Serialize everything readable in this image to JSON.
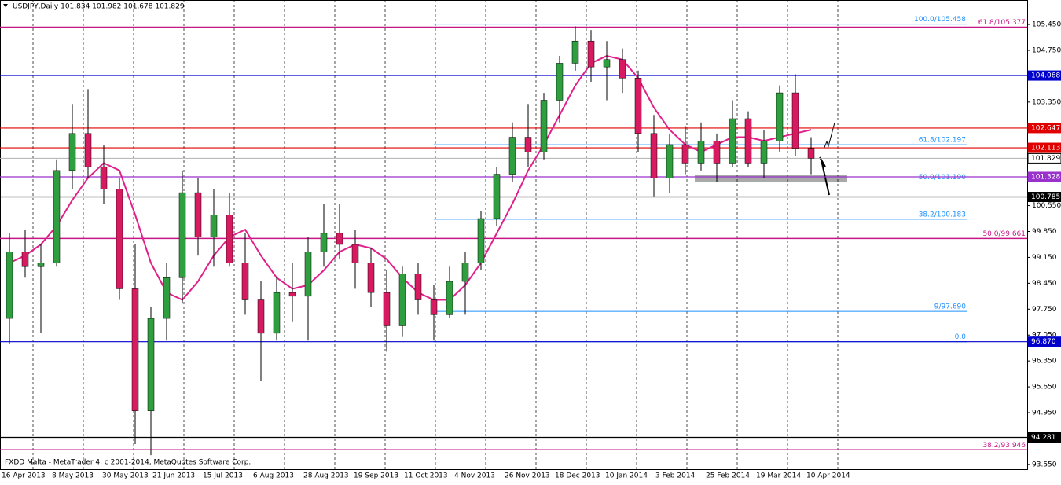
{
  "chart_data": {
    "type": "candlestick",
    "title": "USDJPY,Daily  101.834 101.982 101.678 101.829",
    "footer": "FXDD Malta - MetaTrader 4, c 2001-2014, MetaQuotes Software Corp.",
    "categories": [
      "16 Apr 2013",
      "8 May 2013",
      "30 May 2013",
      "21 Jun 2013",
      "15 Jul 2013",
      "6 Aug 2013",
      "28 Aug 2013",
      "19 Sep 2013",
      "11 Oct 2013",
      "4 Nov 2013",
      "26 Nov 2013",
      "18 Dec 2013",
      "10 Jan 2014",
      "3 Feb 2014",
      "25 Feb 2014",
      "19 Mar 2014",
      "10 Apr 2014"
    ],
    "up_color": "#2e9e3e",
    "down_color": "#d81b60",
    "open": [
      97.5,
      99.3,
      98.9,
      99.0,
      101.5,
      102.5,
      101.6,
      101.0,
      98.3,
      95.0,
      97.5,
      98.6,
      100.9,
      99.7,
      100.3,
      99.0,
      98.0,
      97.1,
      98.2,
      98.1,
      99.3,
      99.8,
      99.5,
      99.0,
      98.2,
      97.3,
      98.7,
      98.0,
      97.6,
      98.5,
      99.0,
      100.2,
      101.4,
      102.4,
      102.0,
      103.4,
      104.4,
      105.0,
      104.3,
      104.5,
      104.0,
      102.5,
      101.3,
      102.2,
      101.7,
      102.3,
      101.7,
      102.9,
      101.7,
      102.3,
      103.6,
      102.1
    ],
    "high": [
      99.8,
      99.9,
      99.5,
      101.8,
      103.3,
      103.7,
      102.2,
      101.3,
      99.5,
      97.8,
      99.0,
      101.5,
      101.3,
      101.0,
      100.9,
      99.8,
      98.5,
      98.6,
      99.0,
      99.7,
      100.6,
      100.6,
      99.9,
      99.4,
      98.8,
      98.9,
      99.0,
      98.4,
      98.9,
      99.3,
      100.4,
      101.6,
      102.8,
      103.3,
      103.6,
      104.6,
      105.4,
      105.3,
      105.0,
      104.8,
      104.2,
      103.0,
      102.5,
      102.7,
      102.8,
      102.5,
      103.4,
      103.1,
      102.6,
      103.8,
      104.1,
      102.4
    ],
    "low": [
      96.8,
      98.6,
      97.1,
      98.9,
      101.0,
      101.3,
      100.6,
      98.0,
      94.1,
      93.8,
      96.9,
      97.9,
      99.2,
      98.9,
      98.9,
      97.6,
      95.8,
      96.9,
      97.4,
      96.9,
      98.9,
      99.1,
      98.3,
      97.8,
      96.6,
      97.0,
      97.6,
      96.9,
      97.5,
      97.6,
      98.8,
      100.0,
      101.2,
      101.6,
      101.8,
      102.8,
      104.2,
      103.9,
      103.4,
      103.6,
      102.0,
      100.8,
      100.9,
      101.4,
      101.5,
      101.2,
      101.6,
      101.6,
      101.3,
      102.0,
      101.9,
      101.4
    ],
    "close": [
      99.3,
      98.9,
      99.0,
      101.5,
      102.5,
      101.6,
      101.0,
      98.3,
      95.0,
      97.5,
      98.6,
      100.9,
      99.7,
      100.3,
      99.0,
      98.0,
      97.1,
      98.2,
      98.1,
      99.3,
      99.8,
      99.5,
      99.0,
      98.2,
      97.3,
      98.7,
      98.0,
      97.6,
      98.5,
      99.0,
      100.2,
      101.4,
      102.4,
      102.0,
      103.4,
      104.4,
      105.0,
      104.3,
      104.5,
      104.0,
      102.5,
      101.3,
      102.2,
      101.7,
      102.3,
      101.7,
      102.9,
      101.7,
      102.3,
      103.6,
      102.1,
      101.829
    ],
    "moving_average": {
      "color": "#e0208a",
      "values": [
        99.0,
        99.2,
        99.5,
        100.0,
        100.7,
        101.3,
        101.7,
        101.5,
        100.3,
        99.0,
        98.2,
        98.0,
        98.5,
        99.2,
        99.7,
        99.9,
        99.2,
        98.6,
        98.3,
        98.4,
        98.8,
        99.3,
        99.5,
        99.4,
        99.1,
        98.6,
        98.2,
        98.0,
        98.0,
        98.4,
        99.0,
        99.8,
        100.6,
        101.5,
        102.2,
        103.0,
        103.8,
        104.4,
        104.6,
        104.5,
        104.0,
        103.2,
        102.6,
        102.2,
        102.0,
        102.2,
        102.4,
        102.4,
        102.3,
        102.4,
        102.5,
        102.6
      ]
    },
    "ylim": [
      93.42,
      106.11
    ],
    "yticks": [
      {
        "value": 105.45,
        "label": "105.450"
      },
      {
        "value": 104.75,
        "label": "104.750"
      },
      {
        "value": 103.35,
        "label": "103.350"
      },
      {
        "value": 100.55,
        "label": "100.550"
      },
      {
        "value": 99.85,
        "label": "99.850"
      },
      {
        "value": 99.15,
        "label": "99.150"
      },
      {
        "value": 98.45,
        "label": "98.450"
      },
      {
        "value": 97.75,
        "label": "97.750"
      },
      {
        "value": 97.05,
        "label": "97.050"
      },
      {
        "value": 96.35,
        "label": "96.350"
      },
      {
        "value": 95.65,
        "label": "95.650"
      },
      {
        "value": 94.95,
        "label": "94.950"
      },
      {
        "value": 93.55,
        "label": "93.550"
      }
    ],
    "levels": [
      {
        "value": 104.068,
        "label": "104.068",
        "color": "#0000cc"
      },
      {
        "value": 102.647,
        "label": "102.647",
        "color": "#e00000"
      },
      {
        "value": 102.113,
        "label": "102.113",
        "color": "#e00000"
      },
      {
        "value": 101.829,
        "label": "101.829",
        "color": "#000000"
      },
      {
        "value": 101.328,
        "label": "101.328",
        "color": "#9932cc"
      },
      {
        "value": 100.785,
        "label": "100.785",
        "color": "#000000"
      },
      {
        "value": 96.87,
        "label": "96.870",
        "color": "#0000cc"
      },
      {
        "value": 94.281,
        "label": "94.281",
        "color": "#000000"
      }
    ],
    "fib_retracement_1": [
      {
        "text": "100.0/105.458",
        "price": 105.458
      },
      {
        "text": "61.8/102.197",
        "price": 102.197
      },
      {
        "text": "50.0/101.190",
        "price": 101.19
      },
      {
        "text": "38.2/100.183",
        "price": 100.183
      },
      {
        "text": "9/97.690",
        "price": 97.69
      },
      {
        "text": "0.0",
        "price": 96.87
      }
    ],
    "fib_retracement_1_color": "#1e90ff",
    "fib_retracement_2": [
      {
        "text": "61.8/105.377",
        "price": 105.377
      },
      {
        "text": "50.0/99.661",
        "price": 99.661
      },
      {
        "text": "38.2/93.946",
        "price": 93.946
      }
    ],
    "fib_retracement_2_color": "#c71585"
  }
}
